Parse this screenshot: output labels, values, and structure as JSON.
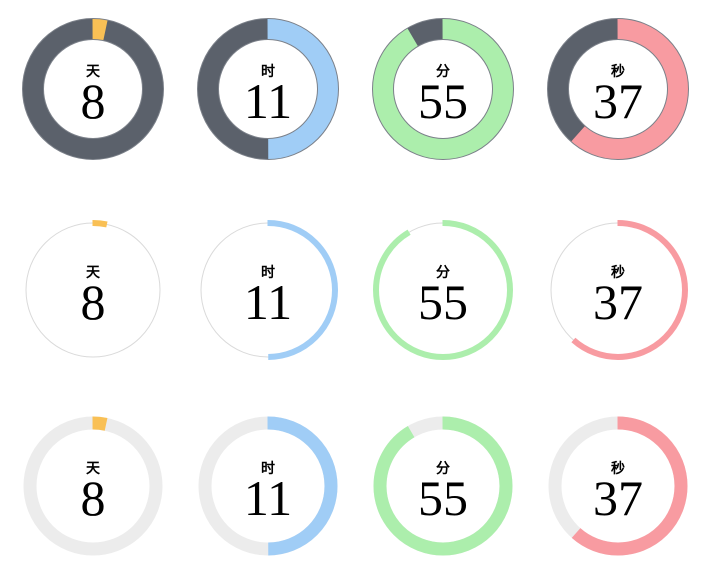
{
  "page": {
    "background": "#ffffff",
    "description": "Countdown timer rings grid"
  },
  "units": [
    {
      "id": "days",
      "label": "天",
      "value": "8",
      "sweep_deg": 12,
      "accent": "#f9c055"
    },
    {
      "id": "hours",
      "label": "时",
      "value": "11",
      "sweep_deg": 180,
      "accent": "#a0cdf6"
    },
    {
      "id": "minutes",
      "label": "分",
      "value": "55",
      "sweep_deg": 330,
      "accent": "#aceeac"
    },
    {
      "id": "seconds",
      "label": "秒",
      "value": "37",
      "sweep_deg": 222,
      "accent": "#f89ba1"
    }
  ],
  "rows": [
    {
      "id": "solid-dark",
      "variant": "thick dark ring with outline",
      "radius": 60,
      "ring_width": 21,
      "track_width": 21,
      "track_color": "#5b616b",
      "outlined": true,
      "outline_color": "#7b8089"
    },
    {
      "id": "thin-line",
      "variant": "hairline ring with thin arc",
      "radius": 67,
      "ring_width": 6,
      "track_width": 1,
      "track_color": "#dadada",
      "outlined": false,
      "outline_color": ""
    },
    {
      "id": "soft-gray",
      "variant": "medium light-gray ring",
      "radius": 63,
      "ring_width": 13,
      "track_width": 13,
      "track_color": "#ececec",
      "outlined": false,
      "outline_color": ""
    }
  ],
  "text_color": "#000000",
  "chart_data": {
    "type": "pie",
    "title": "Countdown donut gauges: 天 8, 时 11, 分 55, 秒 37 (rendered in 3 style variants)",
    "series": [
      {
        "name": "天 (days)",
        "value": 8,
        "sweep_deg": 12,
        "color": "#f9c055"
      },
      {
        "name": "时 (hours)",
        "value": 11,
        "sweep_deg": 180,
        "color": "#a0cdf6"
      },
      {
        "name": "分 (minutes)",
        "value": 55,
        "sweep_deg": 330,
        "color": "#aceeac"
      },
      {
        "name": "秒 (seconds)",
        "value": 37,
        "sweep_deg": 222,
        "color": "#f89ba1"
      }
    ],
    "track_colors_by_row": [
      "#5b616b",
      "#dadada",
      "#ececec"
    ],
    "start_angle_deg": 0,
    "direction": "clockwise",
    "legend_position": "none",
    "grid": false
  }
}
